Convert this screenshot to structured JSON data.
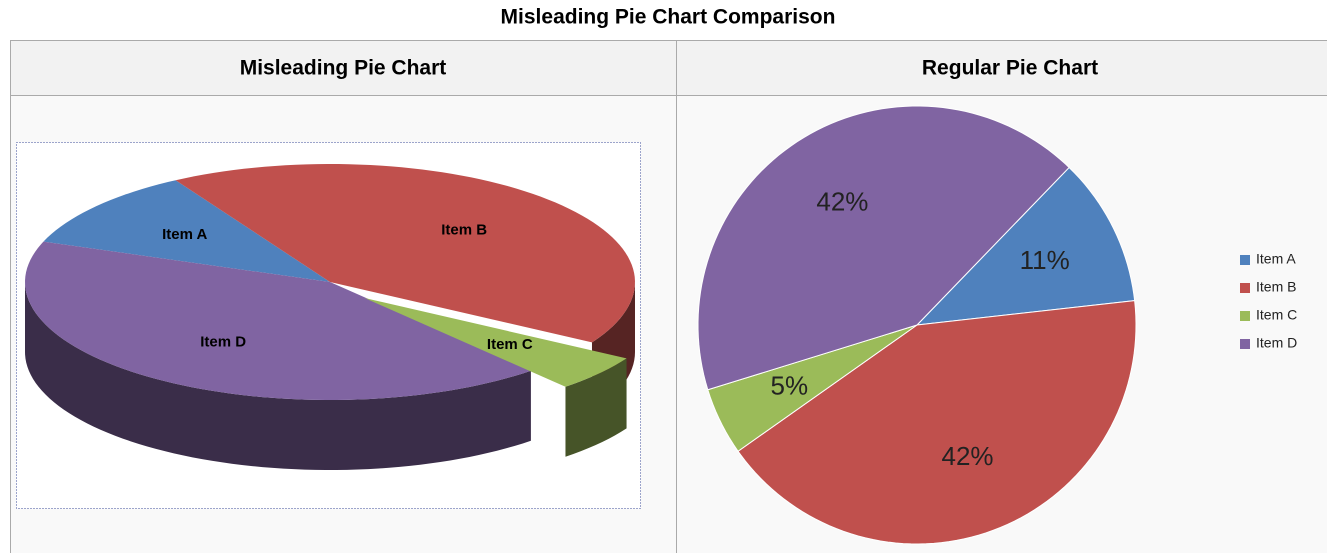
{
  "caption": "Misleading Pie Chart Comparison",
  "chart_data": [
    {
      "type": "pie",
      "title": "Misleading Pie Chart",
      "3d": true,
      "exploded": "Item C",
      "categories": [
        "Item A",
        "Item B",
        "Item C",
        "Item D"
      ],
      "values": [
        11,
        42,
        5,
        42
      ],
      "colors": [
        "#4f81bd",
        "#c0504d",
        "#9bbb59",
        "#8064a2"
      ]
    },
    {
      "type": "pie",
      "title": "Regular Pie Chart",
      "legend": "right",
      "categories": [
        "Item A",
        "Item B",
        "Item C",
        "Item D"
      ],
      "values": [
        11,
        42,
        5,
        42
      ],
      "value_labels": [
        "11%",
        "42%",
        "5%",
        "42%"
      ],
      "colors": [
        "#4f81bd",
        "#c0504d",
        "#9bbb59",
        "#8064a2"
      ]
    }
  ]
}
